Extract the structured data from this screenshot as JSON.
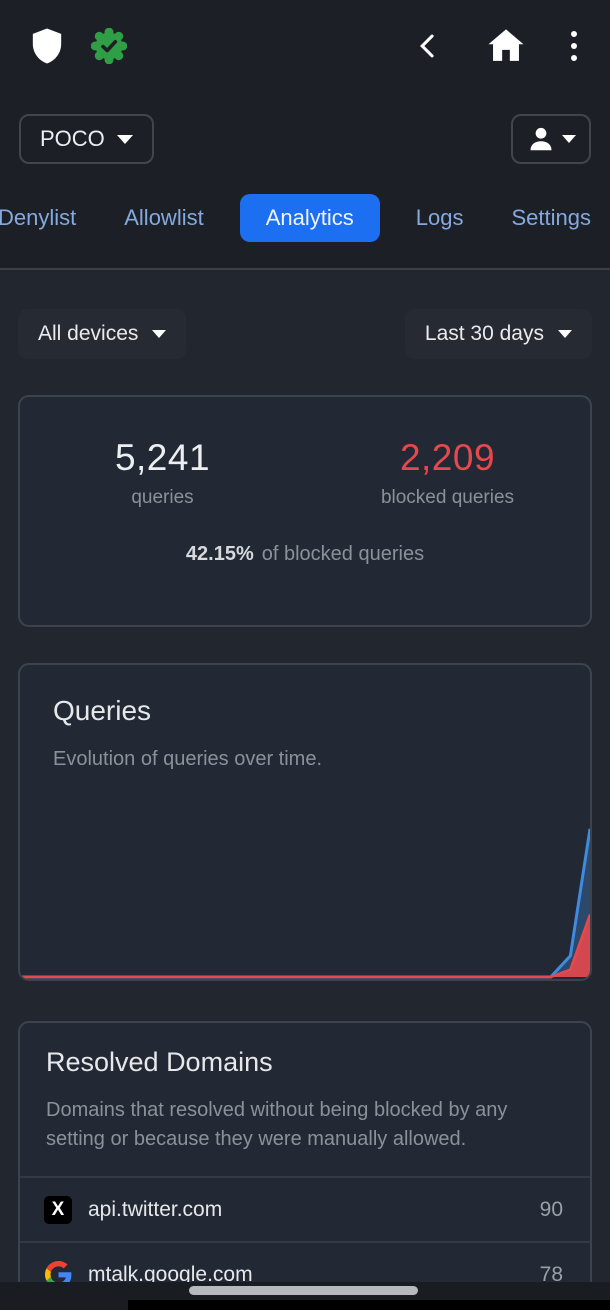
{
  "colors": {
    "accent_blue": "#1d6ff2",
    "tab_text_blue": "#84a9de",
    "danger_red": "#e5484d",
    "verified_green": "#2f9e44",
    "chart_line_blue": "#3f8cdf",
    "chart_fill_red": "#e5484d",
    "header_bg": "#1c2026",
    "content_bg": "#22262e",
    "card_bg": "#232934"
  },
  "topbar": {
    "icons": [
      "shield-icon",
      "verified-badge-icon",
      "back-icon",
      "home-icon",
      "overflow-menu-icon"
    ]
  },
  "profile": {
    "config_name": "POCO",
    "account_icon": "person-icon"
  },
  "tabs": [
    {
      "label": "Denylist",
      "active": false
    },
    {
      "label": "Allowlist",
      "active": false
    },
    {
      "label": "Analytics",
      "active": true
    },
    {
      "label": "Logs",
      "active": false
    },
    {
      "label": "Settings",
      "active": false
    }
  ],
  "filters": {
    "devices_label": "All devices",
    "period_label": "Last 30 days"
  },
  "stats": {
    "queries_value": "5,241",
    "queries_label": "queries",
    "blocked_value": "2,209",
    "blocked_label": "blocked queries",
    "blocked_percent": "42.15%",
    "blocked_percent_label": "of blocked queries"
  },
  "queries_card": {
    "title": "Queries",
    "subtitle": "Evolution of queries over time."
  },
  "resolved_domains": {
    "title": "Resolved Domains",
    "description": "Domains that resolved without being blocked by any setting or because they were manually allowed.",
    "rows": [
      {
        "icon": "x-twitter-logo",
        "domain": "api.twitter.com",
        "count": "90"
      },
      {
        "icon": "google-logo",
        "domain": "mtalk.google.com",
        "count": "78"
      }
    ]
  },
  "chart_data": {
    "type": "area",
    "title": "Queries",
    "xlabel": "",
    "ylabel": "",
    "x_description": "last 30 days, one point per day; no axis ticks or gridlines shown",
    "grid": false,
    "legend": "none",
    "ylim": [
      0,
      6650
    ],
    "series": [
      {
        "name": "queries",
        "color": "#3f8cdf",
        "fill_opacity": 0.33,
        "values": [
          0,
          0,
          0,
          0,
          0,
          0,
          0,
          0,
          0,
          0,
          0,
          0,
          0,
          0,
          0,
          0,
          0,
          0,
          0,
          0,
          0,
          0,
          0,
          0,
          0,
          0,
          0,
          0,
          750,
          5241
        ]
      },
      {
        "name": "blocked queries",
        "color": "#e5484d",
        "fill_opacity": 0.9,
        "values": [
          0,
          0,
          0,
          0,
          0,
          0,
          0,
          0,
          0,
          0,
          0,
          0,
          0,
          0,
          0,
          0,
          0,
          0,
          0,
          0,
          0,
          0,
          0,
          0,
          0,
          0,
          0,
          0,
          260,
          2209
        ]
      }
    ]
  }
}
